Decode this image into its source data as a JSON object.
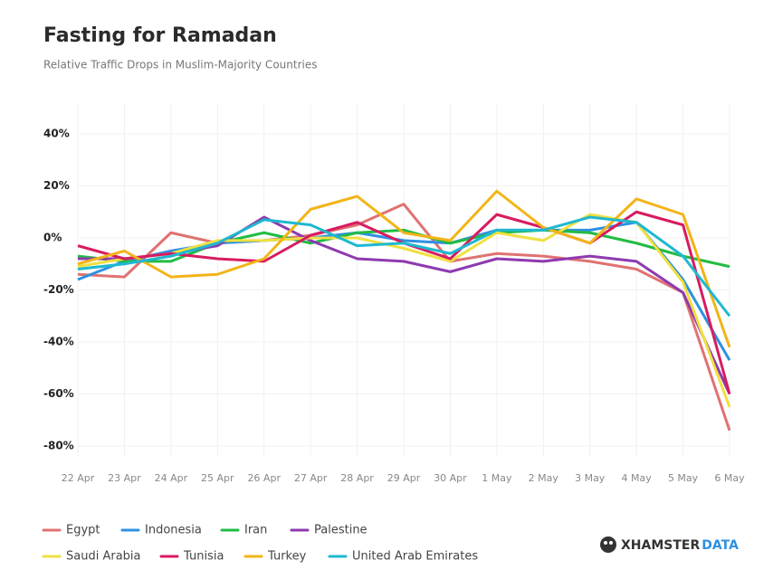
{
  "chart_data": {
    "type": "line",
    "title": "Fasting for Ramadan",
    "subtitle": "Relative Traffic Drops in Muslim-Majority Countries",
    "categories": [
      "22 Apr",
      "23 Apr",
      "24 Apr",
      "25 Apr",
      "26 Apr",
      "27 Apr",
      "28 Apr",
      "29 Apr",
      "30 Apr",
      "1 May",
      "2 May",
      "3 May",
      "4 May",
      "5 May",
      "6 May"
    ],
    "series": [
      {
        "name": "Egypt",
        "color": "#e07272",
        "values": [
          -14,
          -15,
          2,
          -2,
          -1,
          1,
          5,
          13,
          -9,
          -6,
          -7,
          -9,
          -12,
          -21,
          -74
        ]
      },
      {
        "name": "Indonesia",
        "color": "#2e90e2",
        "values": [
          -16,
          -9,
          -5,
          -2,
          -1,
          0,
          2,
          -1,
          -2,
          3,
          3,
          3,
          6,
          -16,
          -47
        ]
      },
      {
        "name": "Iran",
        "color": "#22bb44",
        "values": [
          -7,
          -9,
          -9,
          -2,
          2,
          -2,
          2,
          3,
          -2,
          2,
          3,
          2,
          -2,
          -7,
          -11
        ]
      },
      {
        "name": "Palestine",
        "color": "#8e3ab0",
        "values": [
          -8,
          -8,
          -6,
          -3,
          8,
          -1,
          -8,
          -9,
          -13,
          -8,
          -9,
          -7,
          -9,
          -21,
          -60
        ]
      },
      {
        "name": "Saudi Arabia",
        "color": "#f0e040",
        "values": [
          -11,
          -8,
          -6,
          -1,
          -1,
          0,
          0,
          -4,
          -9,
          2,
          -1,
          9,
          6,
          -17,
          -65
        ]
      },
      {
        "name": "Tunisia",
        "color": "#d81b60",
        "values": [
          -3,
          -8,
          -6,
          -8,
          -9,
          1,
          6,
          -2,
          -8,
          9,
          4,
          -2,
          10,
          5,
          -60
        ]
      },
      {
        "name": "Turkey",
        "color": "#f2b417",
        "values": [
          -10,
          -5,
          -15,
          -14,
          -8,
          11,
          16,
          2,
          -1,
          18,
          4,
          -2,
          15,
          9,
          -42
        ]
      },
      {
        "name": "United Arab Emirates",
        "color": "#1fb8d0",
        "values": [
          -12,
          -10,
          -7,
          -2,
          7,
          5,
          -3,
          -2,
          -6,
          3,
          3,
          8,
          6,
          -7,
          -30
        ]
      }
    ],
    "ylim": [
      -80,
      40
    ],
    "yticks": [
      {
        "value": 40,
        "label": "40%"
      },
      {
        "value": 20,
        "label": "20%"
      },
      {
        "value": 0,
        "label": "0%"
      },
      {
        "value": -20,
        "label": "-20%"
      },
      {
        "value": -40,
        "label": "-40%"
      },
      {
        "value": -60,
        "label": "-60%"
      },
      {
        "value": -80,
        "label": "-80%"
      }
    ],
    "grid": true,
    "brand": "XHAMSTER",
    "brand_suffix": "DATA"
  }
}
